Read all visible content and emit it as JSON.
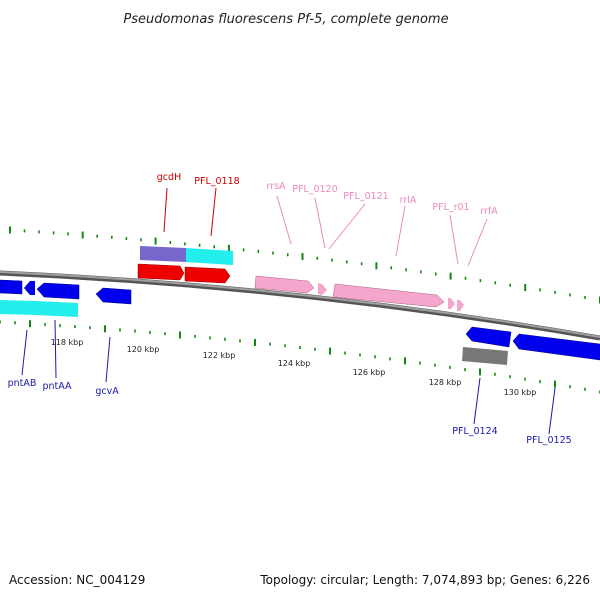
{
  "title": "Pseudomonas fluorescens Pf-5, complete genome",
  "scale_labels": [
    "118 kbp",
    "120 kbp",
    "122 kbp",
    "124 kbp",
    "126 kbp",
    "128 kbp",
    "130 kbp"
  ],
  "genes_above": [
    {
      "label": "gcdH",
      "color": "#cc0000"
    },
    {
      "label": "PFL_0118",
      "color": "#cc0000"
    },
    {
      "label": "rrsA",
      "color": "#ee88bb"
    },
    {
      "label": "PFL_0120",
      "color": "#ee88bb"
    },
    {
      "label": "PFL_0121",
      "color": "#ee88bb"
    },
    {
      "label": "rrlA",
      "color": "#ee88bb"
    },
    {
      "label": "PFL_r01",
      "color": "#ee88bb"
    },
    {
      "label": "rrfA",
      "color": "#ee88bb"
    }
  ],
  "genes_below": [
    {
      "label": "pntAB",
      "color": "#1a1aaa"
    },
    {
      "label": "pntAA",
      "color": "#1a1aaa"
    },
    {
      "label": "gcvA",
      "color": "#1a1aaa"
    },
    {
      "label": "PFL_0124",
      "color": "#1a1aaa"
    },
    {
      "label": "PFL_0125",
      "color": "#1a1aaa"
    }
  ],
  "feature_colors": {
    "cds_forward": "#ee0000",
    "cds_reverse": "#0000ee",
    "rna": "#f4a6cc",
    "cog_purple": "#7766cc",
    "cog_cyan": "#22eeee",
    "cog_gray": "#777777",
    "backbone": "#888888",
    "ticks": "#118811"
  },
  "footer": {
    "accession": "Accession: NC_004129",
    "summary": "Topology: circular; Length: 7,074,893 bp; Genes: 6,226"
  }
}
